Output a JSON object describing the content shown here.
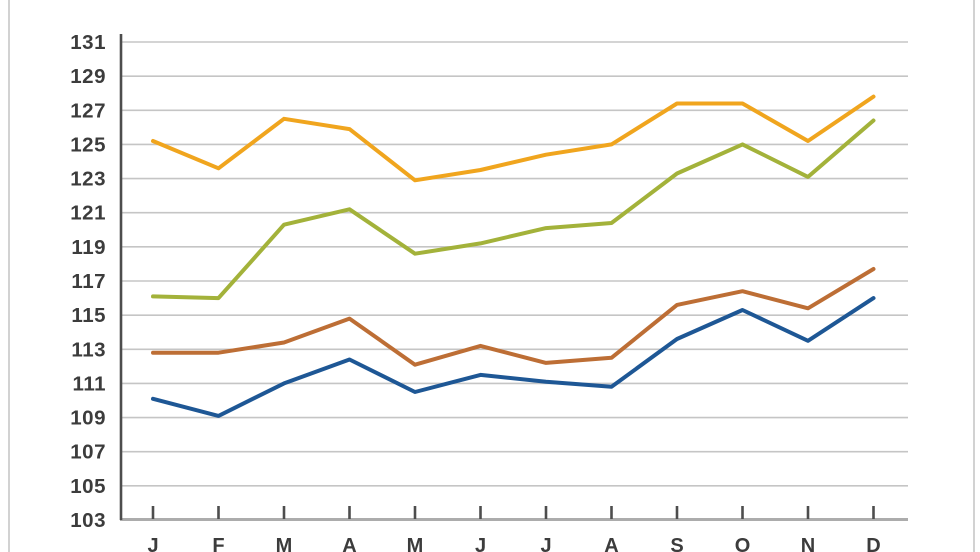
{
  "page": {
    "background_color": "#ffffff",
    "border_color": "#d2d2d2"
  },
  "chart_data": {
    "type": "line",
    "title": "",
    "xlabel": "",
    "ylabel": "",
    "categories": [
      "J",
      "F",
      "M",
      "A",
      "M",
      "J",
      "J",
      "A",
      "S",
      "O",
      "N",
      "D"
    ],
    "y_tick_labels": [
      "131",
      "129",
      "127",
      "125",
      "123",
      "121",
      "119",
      "117",
      "115",
      "113",
      "111",
      "109",
      "107",
      "105",
      "103"
    ],
    "y_tick_values": [
      131,
      129,
      127,
      125,
      123,
      121,
      119,
      117,
      115,
      113,
      111,
      109,
      107,
      105,
      103
    ],
    "ylim": [
      103,
      131
    ],
    "grid": "horizontal",
    "legend": "none",
    "series": [
      {
        "name": "yellow",
        "color": "#f0a51e",
        "values": [
          125.2,
          123.6,
          126.5,
          125.9,
          122.9,
          123.5,
          124.4,
          125.0,
          127.4,
          127.4,
          125.2,
          127.8
        ]
      },
      {
        "name": "green",
        "color": "#a3b23a",
        "values": [
          116.1,
          116.0,
          120.3,
          121.2,
          118.6,
          119.2,
          120.1,
          120.4,
          123.3,
          125.0,
          123.1,
          126.4
        ]
      },
      {
        "name": "brown",
        "color": "#bd6e35",
        "values": [
          112.8,
          112.8,
          113.4,
          114.8,
          112.1,
          113.2,
          112.2,
          112.5,
          115.6,
          116.4,
          115.4,
          117.7
        ]
      },
      {
        "name": "blue",
        "color": "#1e5795",
        "values": [
          110.1,
          109.1,
          111.0,
          112.4,
          110.5,
          111.5,
          111.1,
          110.8,
          113.6,
          115.3,
          113.5,
          116.0
        ]
      }
    ],
    "style": {
      "gridline_color": "#c5c5c5",
      "bottom_axis_color": "#acacac",
      "left_axis_color": "#4d4d4d",
      "tick_color": "#4d4d4d",
      "label_color": "#3c3c3c"
    }
  }
}
